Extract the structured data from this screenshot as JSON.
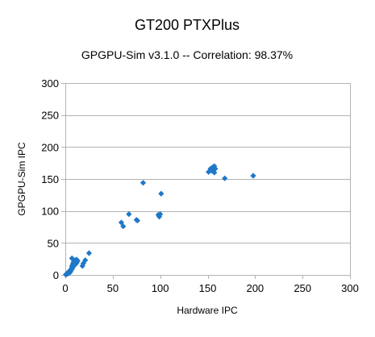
{
  "chart_data": {
    "type": "scatter",
    "title": "GT200 PTXPlus",
    "subtitle": "GPGPU-Sim v3.1.0 -- Correlation: 98.37%",
    "xlabel": "Hardware IPC",
    "ylabel": "GPGPU-Sim IPC",
    "xlim": [
      0,
      300
    ],
    "ylim": [
      0,
      300
    ],
    "x_ticks": [
      0,
      50,
      100,
      150,
      200,
      250,
      300
    ],
    "y_ticks": [
      0,
      50,
      100,
      150,
      200,
      250,
      300
    ],
    "grid": "horizontal",
    "legend": "none",
    "marker_color": "#1F77C8",
    "marker": "diamond",
    "series": [
      {
        "points": [
          [
            0.5,
            0.5
          ],
          [
            1,
            1
          ],
          [
            1.5,
            2
          ],
          [
            2,
            1.5
          ],
          [
            2.5,
            3
          ],
          [
            3,
            2.5
          ],
          [
            3,
            4
          ],
          [
            3.5,
            5
          ],
          [
            4,
            3
          ],
          [
            4.5,
            6
          ],
          [
            5,
            4
          ],
          [
            5,
            7
          ],
          [
            5.5,
            6
          ],
          [
            6,
            8
          ],
          [
            6.5,
            10
          ],
          [
            7,
            9
          ],
          [
            7,
            13
          ],
          [
            7.5,
            15
          ],
          [
            8,
            12
          ],
          [
            8,
            17
          ],
          [
            8.5,
            19
          ],
          [
            9,
            16
          ],
          [
            9,
            21
          ],
          [
            9.5,
            18
          ],
          [
            10,
            20
          ],
          [
            10.5,
            23
          ],
          [
            11,
            17
          ],
          [
            11,
            21
          ],
          [
            12,
            24
          ],
          [
            12,
            19
          ],
          [
            13,
            22
          ],
          [
            7,
            26
          ],
          [
            18,
            14
          ],
          [
            19,
            18
          ],
          [
            21,
            23
          ],
          [
            25,
            34
          ],
          [
            59,
            82
          ],
          [
            61,
            76
          ],
          [
            67,
            95
          ],
          [
            75,
            86
          ],
          [
            76,
            85
          ],
          [
            82,
            144
          ],
          [
            98,
            94
          ],
          [
            99,
            91
          ],
          [
            100,
            95
          ],
          [
            101,
            127
          ],
          [
            151,
            161
          ],
          [
            153,
            166
          ],
          [
            154,
            163
          ],
          [
            155,
            168
          ],
          [
            156,
            165
          ],
          [
            157,
            170
          ],
          [
            157,
            160
          ],
          [
            158,
            166
          ],
          [
            168,
            151
          ],
          [
            198,
            155
          ]
        ]
      }
    ]
  }
}
